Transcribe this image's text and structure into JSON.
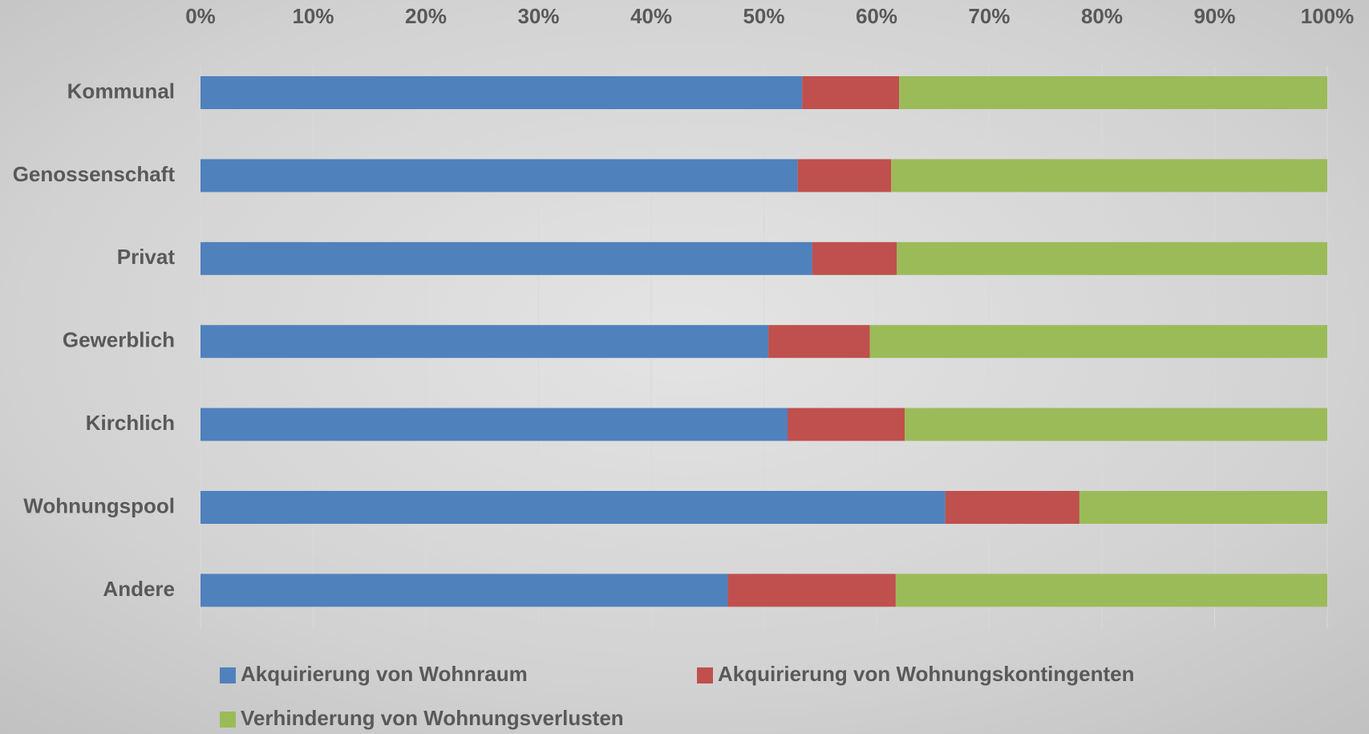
{
  "chart_data": {
    "type": "stacked_barh",
    "categories": [
      "Kommunal",
      "Genossenschaft",
      "Privat",
      "Gewerblich",
      "Kirchlich",
      "Wohnungspool",
      "Andere"
    ],
    "series": [
      {
        "name": "Akquirierung von Wohnraum",
        "color": "#4f81bd",
        "values": [
          53.4,
          53.0,
          54.3,
          50.4,
          52.1,
          66.1,
          46.8
        ]
      },
      {
        "name": "Akquirierung von Wohnungskontingenten",
        "color": "#c0504d",
        "values": [
          8.6,
          8.3,
          7.5,
          9.0,
          10.4,
          11.9,
          14.9
        ]
      },
      {
        "name": "Verhinderung von Wohnungsverlusten",
        "color": "#9bbb59",
        "values": [
          38.0,
          38.7,
          38.2,
          40.6,
          37.5,
          22.0,
          38.3
        ]
      }
    ],
    "xlim": [
      0,
      100
    ],
    "xticks": [
      {
        "value": 0,
        "label": "0%"
      },
      {
        "value": 10,
        "label": "10%"
      },
      {
        "value": 20,
        "label": "20%"
      },
      {
        "value": 30,
        "label": "30%"
      },
      {
        "value": 40,
        "label": "40%"
      },
      {
        "value": 50,
        "label": "50%"
      },
      {
        "value": 60,
        "label": "60%"
      },
      {
        "value": 70,
        "label": "70%"
      },
      {
        "value": 80,
        "label": "80%"
      },
      {
        "value": 90,
        "label": "90%"
      },
      {
        "value": 100,
        "label": "100%"
      }
    ],
    "grid": true,
    "legend": "bottom"
  }
}
